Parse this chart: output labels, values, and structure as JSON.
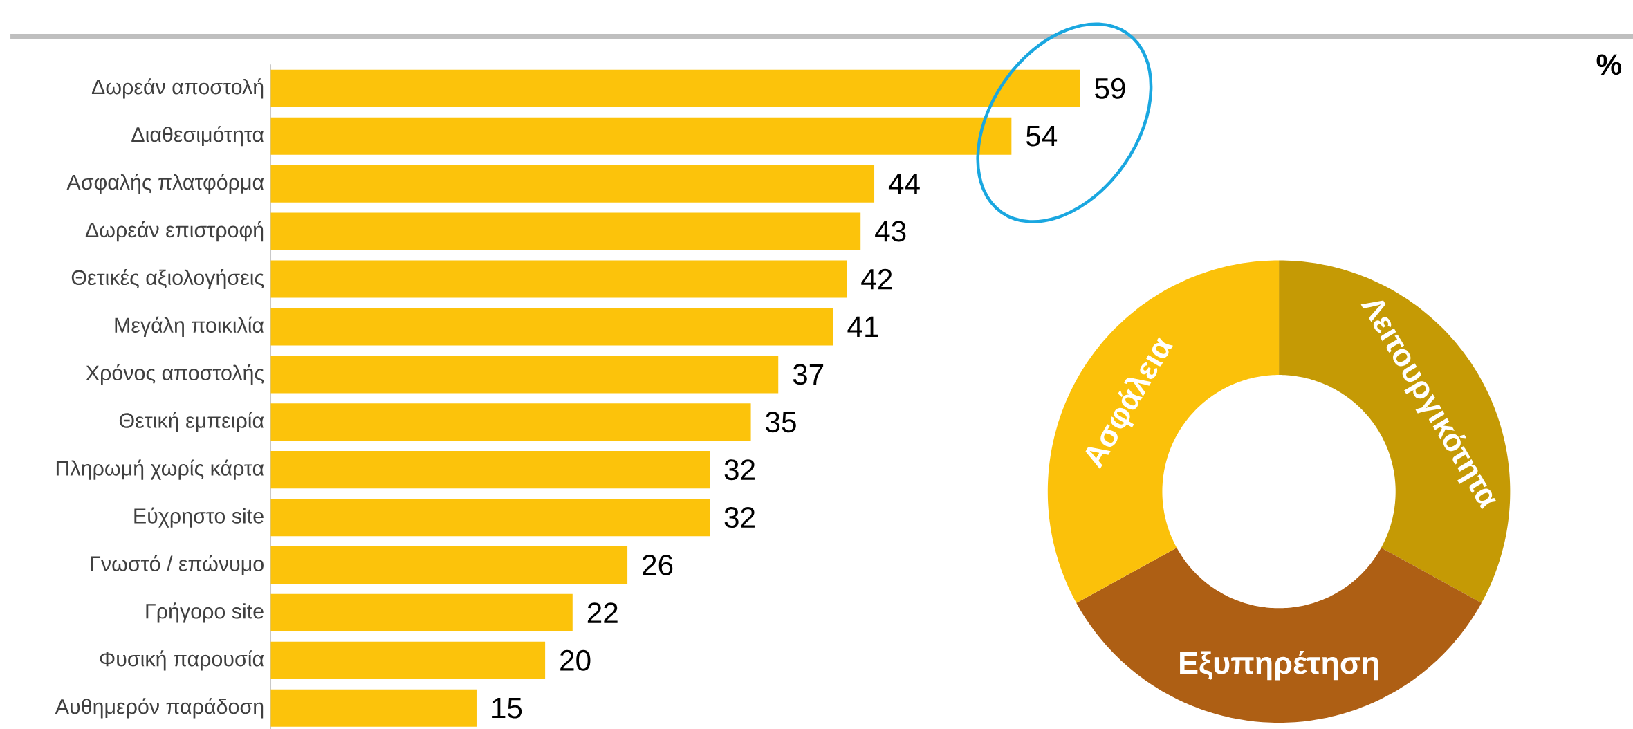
{
  "chart_data": [
    {
      "type": "bar",
      "orientation": "horizontal",
      "color": "#fcc30b",
      "data_labels": true,
      "categories": [
        "Δωρεάν αποστολή",
        "Διαθεσιμότητα",
        "Ασφαλής πλατφόρμα",
        "Δωρεάν επιστροφή",
        "Θετικές αξιολογήσεις",
        "Μεγάλη ποικιλία",
        "Χρόνος αποστολής",
        "Θετική εμπειρία",
        "Πληρωμή χωρίς κάρτα",
        "Εύχρηστο site",
        "Γνωστό / επώνυμο",
        "Γρήγορο site",
        "Φυσική παρουσία",
        "Αυθημερόν παράδοση"
      ],
      "values": [
        59,
        54,
        44,
        43,
        42,
        41,
        37,
        35,
        32,
        32,
        26,
        22,
        20,
        15
      ],
      "annotations": [
        "%"
      ]
    },
    {
      "type": "donut",
      "categories": [
        "Λειτουργικότητα",
        "Εξυπηρέτηση",
        "Ασφάλεια"
      ],
      "values": [
        33,
        34,
        33
      ],
      "colors": [
        "#c59a05",
        "#ae5f14",
        "#fbc10a"
      ]
    }
  ]
}
